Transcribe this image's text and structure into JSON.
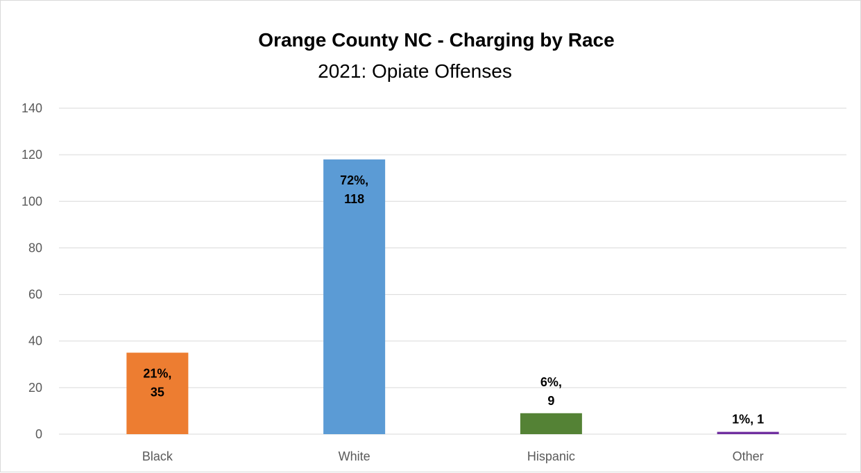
{
  "chart_data": {
    "type": "bar",
    "title": "Orange County NC - Charging by Race",
    "subtitle": "2021: Opiate Offenses",
    "categories": [
      "Black",
      "White",
      "Hispanic",
      "Other"
    ],
    "values": [
      35,
      118,
      9,
      1
    ],
    "data_labels": [
      [
        "21%,",
        "35"
      ],
      [
        "72%,",
        "118"
      ],
      [
        "6%,",
        "9"
      ],
      [
        "1%, 1"
      ]
    ],
    "data_label_position": [
      "inside",
      "inside",
      "above",
      "above"
    ],
    "colors": [
      "#ed7d31",
      "#5b9bd5",
      "#548235",
      "#7030a0"
    ],
    "ylim": [
      0,
      140
    ],
    "yticks": [
      0,
      20,
      40,
      60,
      80,
      100,
      120,
      140
    ],
    "grid": true,
    "legend": "none"
  }
}
